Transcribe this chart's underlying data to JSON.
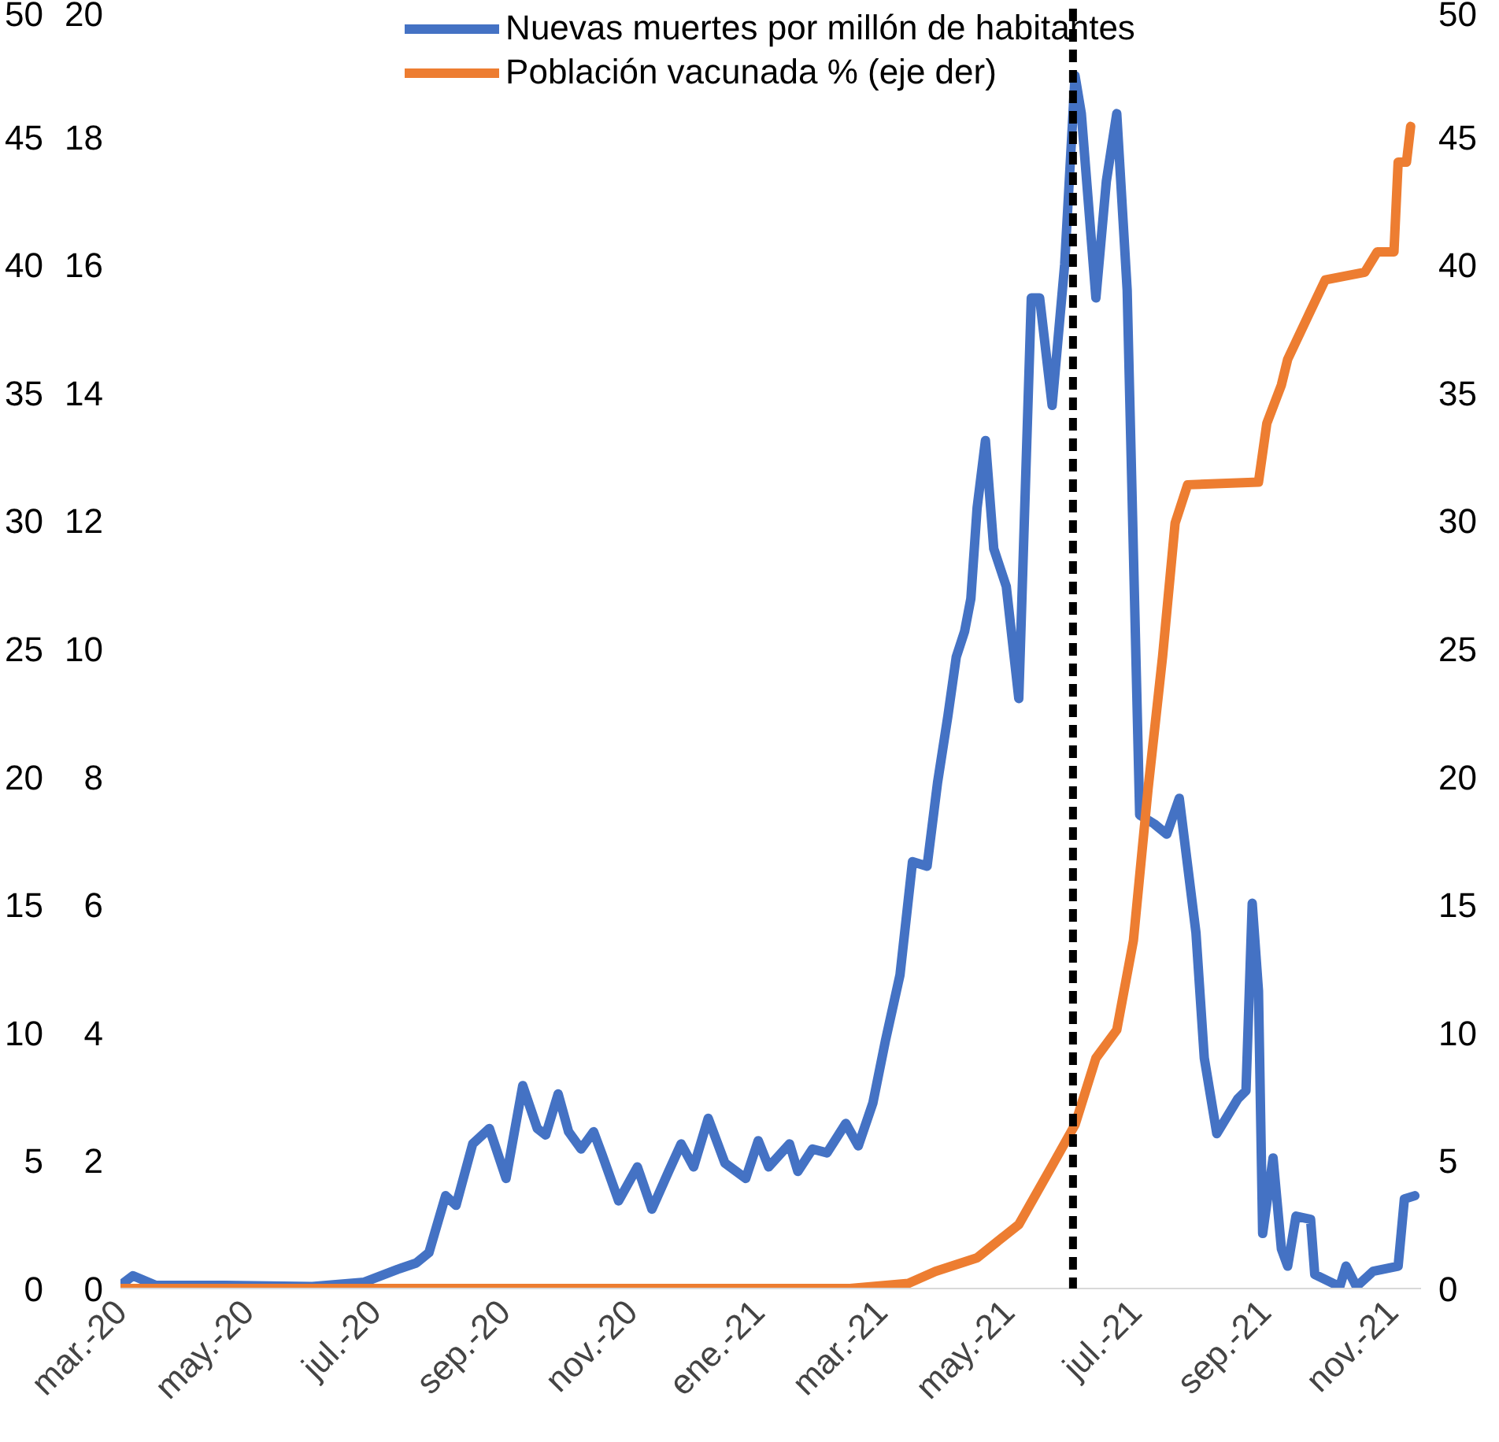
{
  "chart_data": {
    "type": "line",
    "xlim": [
      "2020-03-01",
      "2021-11-15"
    ],
    "xticks": [
      {
        "value": "2020-03-01",
        "label": "mar.-20"
      },
      {
        "value": "2020-05-01",
        "label": "may.-20"
      },
      {
        "value": "2020-07-01",
        "label": "jul.-20"
      },
      {
        "value": "2020-09-01",
        "label": "sep.-20"
      },
      {
        "value": "2020-11-01",
        "label": "nov.-20"
      },
      {
        "value": "2021-01-01",
        "label": "ene.-21"
      },
      {
        "value": "2021-03-01",
        "label": "mar.-21"
      },
      {
        "value": "2021-05-01",
        "label": "may.-21"
      },
      {
        "value": "2021-07-01",
        "label": "jul.-21"
      },
      {
        "value": "2021-09-01",
        "label": "sep.-21"
      },
      {
        "value": "2021-11-01",
        "label": "nov.-21"
      }
    ],
    "ylim": [
      0,
      20
    ],
    "yticks": [
      0,
      2,
      4,
      6,
      8,
      10,
      12,
      14,
      16,
      18,
      20
    ],
    "y2lim": [
      0,
      50
    ],
    "y2ticks": [
      0,
      5,
      10,
      15,
      20,
      25,
      30,
      35,
      40,
      45,
      50
    ],
    "y3lim": [
      0,
      50
    ],
    "y3ticks": [
      0,
      5,
      10,
      15,
      20,
      25,
      30,
      35,
      40,
      45,
      50
    ],
    "grid": false,
    "legend": "top",
    "marker": "none",
    "line_style": "solid",
    "ref_lines": [
      {
        "axis": "x",
        "value": "2021-06-01",
        "color": "#000000",
        "line_style": "dashed"
      }
    ],
    "series": [
      {
        "name": "Nuevas muertes por millón de habitantes",
        "color": "#4472c4",
        "x": [
          "2020-03-01",
          "2020-03-07",
          "2020-03-18",
          "2020-04-20",
          "2020-06-01",
          "2020-06-26",
          "2020-07-12",
          "2020-07-21",
          "2020-07-27",
          "2020-08-04",
          "2020-08-09",
          "2020-08-17",
          "2020-08-25",
          "2020-09-02",
          "2020-09-10",
          "2020-09-17",
          "2020-09-21",
          "2020-09-27",
          "2020-10-02",
          "2020-10-08",
          "2020-10-14",
          "2020-10-18",
          "2020-10-26",
          "2020-11-04",
          "2020-11-11",
          "2020-11-19",
          "2020-11-25",
          "2020-12-01",
          "2020-12-08",
          "2020-12-16",
          "2020-12-26",
          "2021-01-01",
          "2021-01-06",
          "2021-01-16",
          "2021-01-20",
          "2021-01-27",
          "2021-02-03",
          "2021-02-12",
          "2021-02-18",
          "2021-02-25",
          "2021-03-03",
          "2021-03-10",
          "2021-03-16",
          "2021-03-23",
          "2021-03-28",
          "2021-04-02",
          "2021-04-06",
          "2021-04-10",
          "2021-04-13",
          "2021-04-16",
          "2021-04-20",
          "2021-04-24",
          "2021-04-30",
          "2021-05-06",
          "2021-05-12",
          "2021-05-16",
          "2021-05-22",
          "2021-05-28",
          "2021-06-02",
          "2021-06-05",
          "2021-06-12",
          "2021-06-17",
          "2021-06-22",
          "2021-06-27",
          "2021-07-03",
          "2021-07-10",
          "2021-07-16",
          "2021-07-22",
          "2021-07-30",
          "2021-08-03",
          "2021-08-09",
          "2021-08-19",
          "2021-08-23",
          "2021-08-26",
          "2021-08-29",
          "2021-08-31",
          "2021-09-05",
          "2021-09-09",
          "2021-09-12",
          "2021-09-16",
          "2021-09-23",
          "2021-09-25",
          "2021-10-07",
          "2021-10-10",
          "2021-10-15",
          "2021-10-23",
          "2021-11-04",
          "2021-11-07",
          "2021-11-12"
        ],
        "values": [
          0.05,
          0.2,
          0.05,
          0.05,
          0.03,
          0.1,
          0.3,
          0.4,
          0.56,
          1.45,
          1.3,
          2.26,
          2.5,
          1.72,
          3.17,
          2.5,
          2.4,
          3.04,
          2.45,
          2.18,
          2.45,
          2.1,
          1.37,
          1.9,
          1.24,
          1.83,
          2.26,
          1.9,
          2.66,
          1.96,
          1.72,
          2.31,
          1.9,
          2.26,
          1.83,
          2.18,
          2.12,
          2.58,
          2.23,
          2.9,
          3.87,
          4.9,
          6.67,
          6.6,
          7.9,
          8.95,
          9.87,
          10.27,
          10.78,
          12.2,
          13.25,
          11.56,
          10.97,
          9.22,
          15.48,
          15.48,
          13.8,
          16.0,
          18.95,
          18.36,
          15.48,
          17.3,
          18.36,
          15.6,
          7.4,
          7.26,
          7.1,
          7.66,
          5.56,
          3.6,
          2.42,
          2.96,
          3.09,
          6.02,
          4.65,
          0.86,
          2.04,
          0.62,
          0.35,
          1.13,
          1.08,
          0.22,
          0.03,
          0.35,
          0.03,
          0.27,
          0.35,
          1.4,
          1.45
        ]
      },
      {
        "name": "Población vacunada % (eje der)",
        "color": "#ed7d31",
        "axis": "y2",
        "x": [
          "2020-03-01",
          "2021-02-14",
          "2021-03-14",
          "2021-03-27",
          "2021-04-16",
          "2021-05-06",
          "2021-05-22",
          "2021-06-02",
          "2021-06-12",
          "2021-06-22",
          "2021-06-30",
          "2021-07-07",
          "2021-07-14",
          "2021-07-20",
          "2021-07-26",
          "2021-08-29",
          "2021-09-02",
          "2021-09-09",
          "2021-09-12",
          "2021-09-23",
          "2021-09-30",
          "2021-10-19",
          "2021-10-25",
          "2021-11-02",
          "2021-11-04",
          "2021-11-08",
          "2021-11-10"
        ],
        "values": [
          0,
          0,
          0.2,
          0.67,
          1.2,
          2.5,
          4.8,
          6.4,
          9.0,
          10.1,
          13.6,
          19.5,
          24.7,
          29.9,
          31.4,
          31.5,
          33.8,
          35.3,
          36.3,
          38.2,
          39.4,
          39.7,
          40.5,
          40.5,
          44.0,
          44.0,
          45.4
        ]
      }
    ]
  }
}
